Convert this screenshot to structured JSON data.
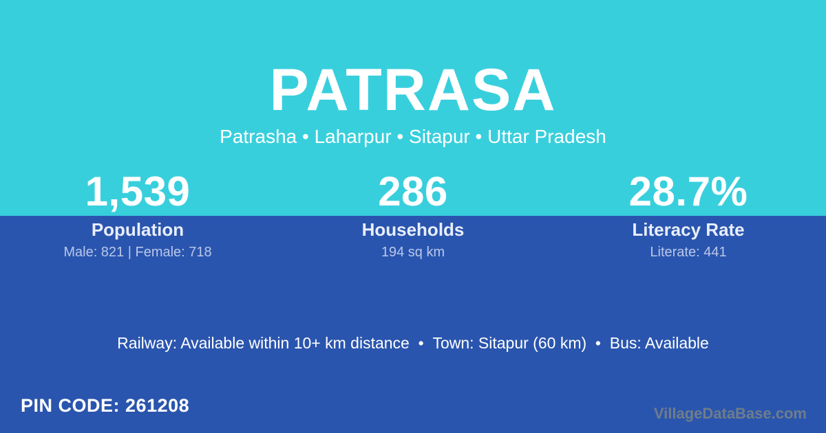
{
  "header": {
    "title": "PATRASA",
    "location_breadcrumb": "Patrasha • Laharpur • Sitapur • Uttar Pradesh"
  },
  "stats": {
    "items": [
      {
        "value": "1,539",
        "label": "Population",
        "detail": "Male: 821 | Female: 718"
      },
      {
        "value": "286",
        "label": "Households",
        "detail": "194 sq km"
      },
      {
        "value": "28.7%",
        "label": "Literacy Rate",
        "detail": "Literate: 441"
      }
    ]
  },
  "connectivity": {
    "summary": "Railway: Available within 10+ km distance  •  Town: Sitapur (60 km)  •  Bus: Available"
  },
  "footer": {
    "pin_code_label": "PIN CODE:",
    "pin_code_value": "261208",
    "watermark": "VillageDataBase.com"
  },
  "colors": {
    "top_background": "#38cfdd",
    "bottom_background": "#2a55ae",
    "primary_text": "#ffffff",
    "stat_label_text": "#e8eefb",
    "stat_detail_text": "#b9c8ea",
    "watermark_text": "#6f7d8b"
  }
}
